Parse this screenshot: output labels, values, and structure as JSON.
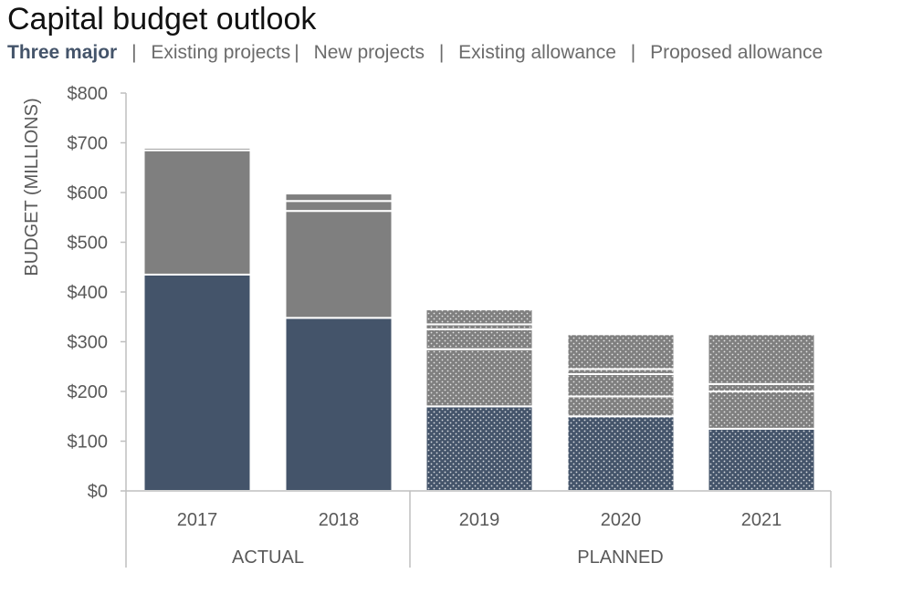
{
  "title": "Capital budget outlook",
  "legend": [
    {
      "label": "Three major",
      "active": true
    },
    {
      "label": "Existing projects",
      "active": false
    },
    {
      "label": "New projects",
      "active": false
    },
    {
      "label": "Existing allowance",
      "active": false
    },
    {
      "label": "Proposed allowance",
      "active": false
    }
  ],
  "colors": {
    "three_major": "#44546a",
    "existing_projects": "#7f7f7f",
    "text": "#595959",
    "axis": "#bfbfbf"
  },
  "chart_data": {
    "type": "bar",
    "stacked": true,
    "title": "Capital budget outlook",
    "ylabel": "BUDGET (MILLIONS)",
    "xlabel": "",
    "ylim": [
      0,
      800
    ],
    "yticks": [
      0,
      100,
      200,
      300,
      400,
      500,
      600,
      700,
      800
    ],
    "ytick_labels": [
      "$0",
      "$100",
      "$200",
      "$300",
      "$400",
      "$500",
      "$600",
      "$700",
      "$800"
    ],
    "categories": [
      "2017",
      "2018",
      "2019",
      "2020",
      "2021"
    ],
    "groups": [
      {
        "label": "ACTUAL",
        "categories": [
          "2017",
          "2018"
        ]
      },
      {
        "label": "PLANNED",
        "categories": [
          "2019",
          "2020",
          "2021"
        ]
      }
    ],
    "patterned_categories": [
      "2019",
      "2020",
      "2021"
    ],
    "series": [
      {
        "name": "Three major",
        "values": [
          435,
          348,
          170,
          150,
          125
        ]
      },
      {
        "name": "Existing projects",
        "values": [
          250,
          215,
          115,
          40,
          75
        ]
      },
      {
        "name": "New projects",
        "values": [
          5,
          20,
          40,
          45,
          15
        ]
      },
      {
        "name": "Existing allowance",
        "values": [
          0,
          15,
          10,
          10,
          0
        ]
      },
      {
        "name": "Proposed allowance",
        "values": [
          0,
          0,
          30,
          70,
          100
        ]
      }
    ]
  }
}
